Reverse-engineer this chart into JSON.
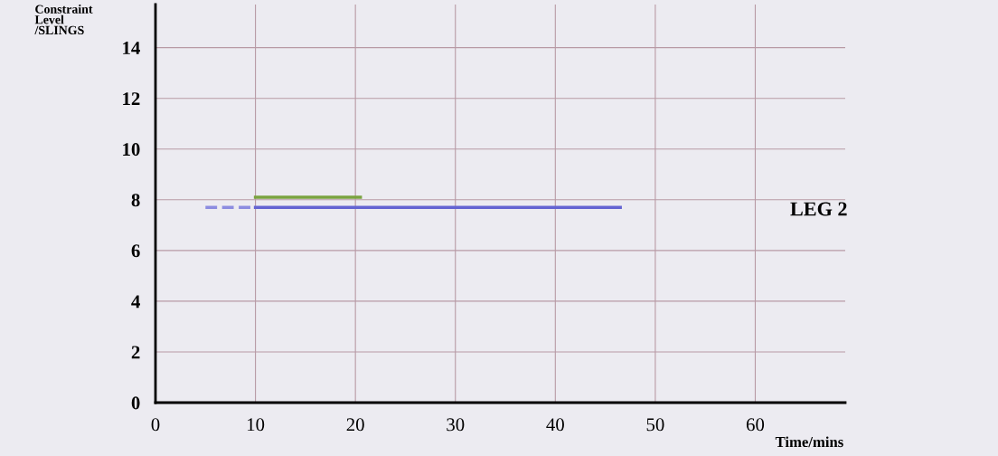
{
  "chart_data": {
    "type": "line",
    "xlabel": "Time/mins",
    "ylabel": "Constraint\nLevel\n/SLINGS",
    "series": [
      {
        "x": [
          10,
          20.5
        ],
        "values": [
          8.1,
          8.1
        ],
        "color": "#7aa33f",
        "line_style": "solid"
      },
      {
        "x": [
          10,
          46.5
        ],
        "values": [
          7.7,
          7.7
        ],
        "color": "#6464d2",
        "line_style": "solid"
      },
      {
        "x": [
          5,
          10
        ],
        "values": [
          7.7,
          7.7
        ],
        "color": "#8c8ce0",
        "line_style": "dashed"
      }
    ],
    "xlim": [
      0,
      69
    ],
    "ylim": [
      0,
      15.7
    ],
    "xticks": [
      0,
      10,
      20,
      30,
      40,
      50,
      60
    ],
    "yticks": [
      0,
      2,
      4,
      6,
      8,
      10,
      12,
      14
    ],
    "grid": true,
    "legend": false,
    "marker": "none",
    "annotations": [
      "LEG 2"
    ]
  }
}
